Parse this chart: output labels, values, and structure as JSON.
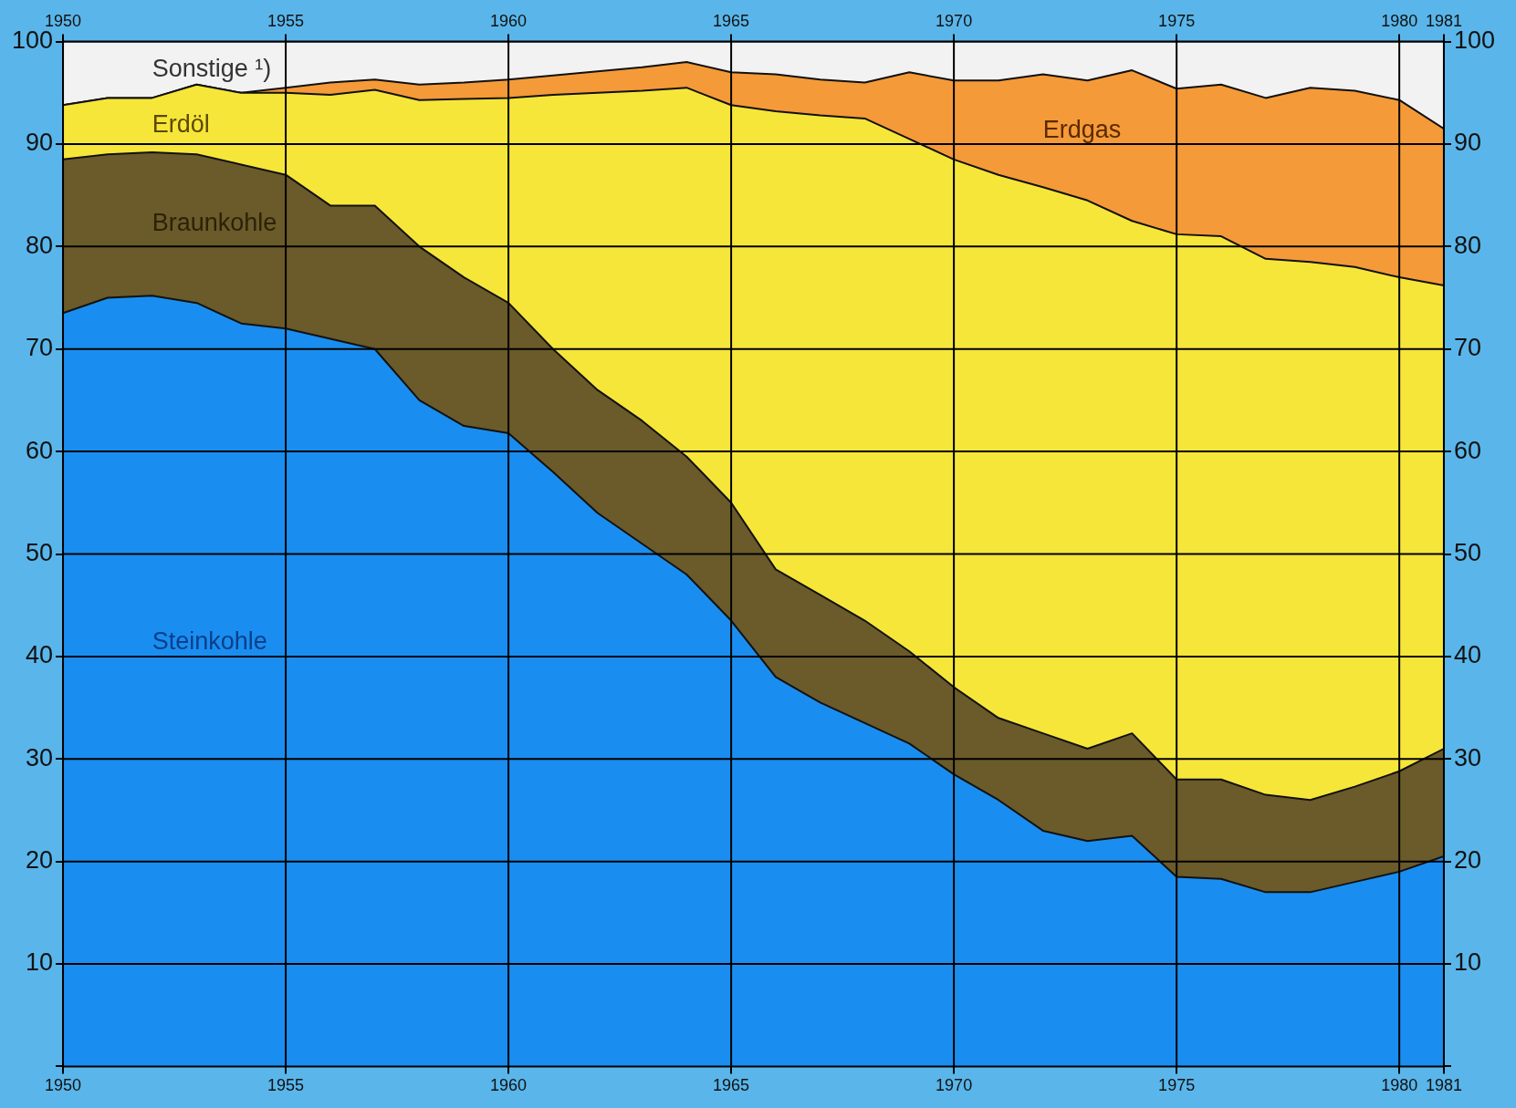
{
  "chart_data": {
    "type": "area",
    "stacked": true,
    "x": [
      1950,
      1951,
      1952,
      1953,
      1954,
      1955,
      1956,
      1957,
      1958,
      1959,
      1960,
      1961,
      1962,
      1963,
      1964,
      1965,
      1966,
      1967,
      1968,
      1969,
      1970,
      1971,
      1972,
      1973,
      1974,
      1975,
      1976,
      1977,
      1978,
      1979,
      1980,
      1981
    ],
    "series": [
      {
        "name": "Steinkohle",
        "color": "#1a8ef0",
        "values": [
          73.5,
          75,
          75.2,
          74.5,
          72.5,
          72,
          71,
          70,
          65,
          62.5,
          61.8,
          58,
          54,
          51,
          48,
          43.5,
          38,
          35.5,
          33.5,
          31.5,
          28.5,
          26,
          23,
          22,
          22.5,
          18.5,
          18.3,
          17,
          17,
          18,
          19,
          20.5
        ]
      },
      {
        "name": "Braunkohle",
        "color": "#6b5a2a",
        "values": [
          15,
          14,
          14,
          14.5,
          15.5,
          15,
          13,
          14,
          15,
          14.5,
          12.7,
          12,
          12,
          12,
          11.5,
          11.5,
          10.5,
          10.5,
          10,
          9,
          8.5,
          8,
          9.5,
          9,
          10,
          9.5,
          9.7,
          9.5,
          9,
          9.3,
          9.8,
          10.5
        ]
      },
      {
        "name": "Erdöl",
        "color": "#f7e63a",
        "values": [
          5.3,
          5.5,
          5.3,
          6.8,
          7,
          8,
          10.8,
          11.3,
          14.3,
          17.4,
          20,
          24.8,
          29,
          32.2,
          36,
          38.8,
          44.7,
          46.8,
          49,
          50,
          51.5,
          53,
          53.3,
          53.5,
          50,
          53.2,
          53,
          52.3,
          52.5,
          50.7,
          48.2,
          45.2
        ]
      },
      {
        "name": "Erdgas",
        "color": "#f59a38",
        "values": [
          0,
          0,
          0,
          0,
          0,
          0.5,
          1.2,
          1,
          1.5,
          1.6,
          1.8,
          1.9,
          2.1,
          2.3,
          2.5,
          3.2,
          3.6,
          3.5,
          3.5,
          6.5,
          7.7,
          9.2,
          11,
          11.7,
          14.7,
          14.2,
          14.8,
          15.7,
          17,
          17.2,
          17.3,
          15.3
        ]
      },
      {
        "name": "Sonstige ¹)",
        "color": "#f2f2f2",
        "values": [
          6.2,
          5.5,
          5.5,
          4.2,
          5,
          4.5,
          4,
          3.7,
          4.2,
          4,
          3.7,
          3.3,
          2.9,
          2.5,
          2,
          3,
          3.2,
          3.7,
          4,
          3,
          3.8,
          3.8,
          3.2,
          3.8,
          2.8,
          4.6,
          4.2,
          5.5,
          4.5,
          4.8,
          5.7,
          8.5
        ]
      }
    ],
    "xlim": [
      1950,
      1981
    ],
    "xticks": [
      1950,
      1955,
      1960,
      1965,
      1970,
      1975,
      1980,
      1981
    ],
    "x2lim": [
      1950,
      1981
    ],
    "x2ticks": [
      1950,
      1955,
      1960,
      1965,
      1970,
      1975,
      1980,
      1981
    ],
    "ylim": [
      0,
      100
    ],
    "yticks": [
      {
        "value": 0,
        "label": null
      },
      10,
      20,
      30,
      40,
      50,
      60,
      70,
      80,
      90,
      100
    ],
    "y2lim": [
      0,
      100
    ],
    "y2ticks": [
      {
        "value": 0,
        "label": null
      },
      10,
      20,
      30,
      40,
      50,
      60,
      70,
      80,
      90,
      100
    ],
    "grid": true
  }
}
